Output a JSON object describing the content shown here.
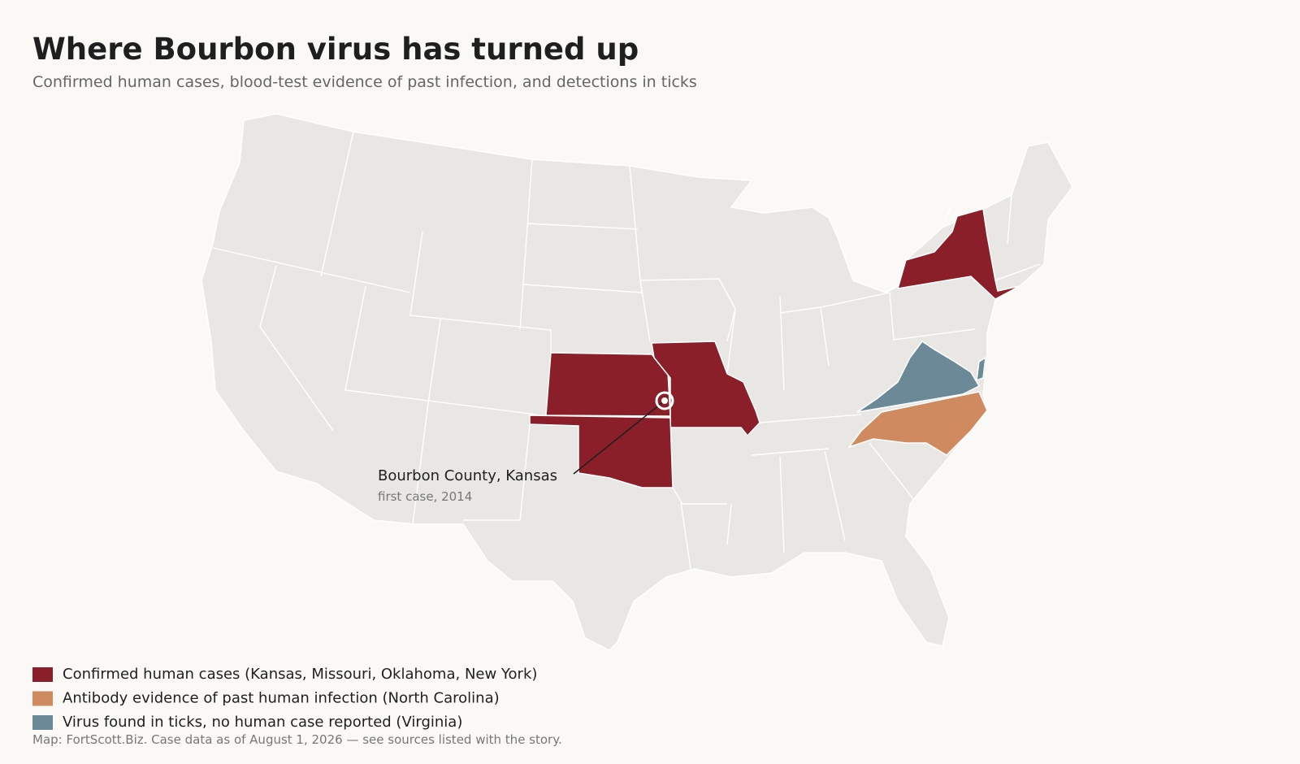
{
  "header": {
    "title": "Where Bourbon virus has turned up",
    "subtitle": "Confirmed human cases, blood-test evidence of past infection, and detections in ticks"
  },
  "map": {
    "annotation": {
      "label": "Bourbon County, Kansas",
      "note": "first case, 2014"
    }
  },
  "legend": [
    {
      "label": "Confirmed human cases  (Kansas, Missouri, Oklahoma, New York)",
      "color": "#8a1f29"
    },
    {
      "label": "Antibody evidence of past human infection  (North Carolina)",
      "color": "#cf8a5f"
    },
    {
      "label": "Virus found in ticks, no human case reported  (Virginia)",
      "color": "#6b8997"
    }
  ],
  "footer": "Map: FortScott.Biz. Case data as of August 1, 2026 — see sources listed with the story."
}
